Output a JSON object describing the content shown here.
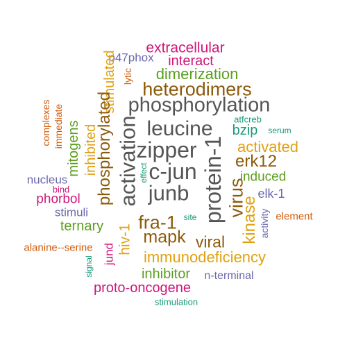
{
  "palette": {
    "gray": "#555555",
    "brown": "#8c5a0b",
    "gold": "#e0a010",
    "green": "#5a9e1e",
    "magenta": "#d0167a",
    "purple": "#6a68ae",
    "orange": "#d25a0a",
    "teal": "#1a9a7a"
  },
  "words": [
    {
      "text": "extracellular",
      "color": "magenta",
      "vertical": false
    },
    {
      "text": "p47phox",
      "color": "purple",
      "vertical": false
    },
    {
      "text": "interact",
      "color": "magenta",
      "vertical": false
    },
    {
      "text": "dimerization",
      "color": "green",
      "vertical": false
    },
    {
      "text": "lytic",
      "color": "orange",
      "vertical": true
    },
    {
      "text": "stimulated",
      "color": "gold",
      "vertical": true
    },
    {
      "text": "heterodimers",
      "color": "brown",
      "vertical": false
    },
    {
      "text": "complexes",
      "color": "orange",
      "vertical": true
    },
    {
      "text": "immediate",
      "color": "orange",
      "vertical": true
    },
    {
      "text": "phosphorylation",
      "color": "gray",
      "vertical": false
    },
    {
      "text": "phosphorylated",
      "color": "brown",
      "vertical": true
    },
    {
      "text": "inhibited",
      "color": "gold",
      "vertical": true
    },
    {
      "text": "mitogens",
      "color": "green",
      "vertical": true
    },
    {
      "text": "atfcreb",
      "color": "teal",
      "vertical": false
    },
    {
      "text": "leucine",
      "color": "gray",
      "vertical": false
    },
    {
      "text": "bzip",
      "color": "teal",
      "vertical": false
    },
    {
      "text": "serum",
      "color": "teal",
      "vertical": false
    },
    {
      "text": "activation",
      "color": "gray",
      "vertical": true
    },
    {
      "text": "zipper",
      "color": "gray",
      "vertical": false
    },
    {
      "text": "activated",
      "color": "gold",
      "vertical": false
    },
    {
      "text": "effect",
      "color": "teal",
      "vertical": true
    },
    {
      "text": "protein-1",
      "color": "gray",
      "vertical": true
    },
    {
      "text": "erk12",
      "color": "brown",
      "vertical": false
    },
    {
      "text": "c-jun",
      "color": "gray",
      "vertical": false
    },
    {
      "text": "nucleus",
      "color": "purple",
      "vertical": false
    },
    {
      "text": "induced",
      "color": "green",
      "vertical": false
    },
    {
      "text": "bind",
      "color": "magenta",
      "vertical": false
    },
    {
      "text": "junb",
      "color": "gray",
      "vertical": false
    },
    {
      "text": "virus",
      "color": "brown",
      "vertical": true
    },
    {
      "text": "elk-1",
      "color": "purple",
      "vertical": false
    },
    {
      "text": "phorbol",
      "color": "magenta",
      "vertical": false
    },
    {
      "text": "stimuli",
      "color": "purple",
      "vertical": false
    },
    {
      "text": "site",
      "color": "teal",
      "vertical": false
    },
    {
      "text": "fra-1",
      "color": "brown",
      "vertical": false
    },
    {
      "text": "activity",
      "color": "purple",
      "vertical": true
    },
    {
      "text": "kinase",
      "color": "gold",
      "vertical": true
    },
    {
      "text": "element",
      "color": "orange",
      "vertical": false
    },
    {
      "text": "ternary",
      "color": "green",
      "vertical": false
    },
    {
      "text": "hiv-1",
      "color": "gold",
      "vertical": true
    },
    {
      "text": "mapk",
      "color": "brown",
      "vertical": false
    },
    {
      "text": "viral",
      "color": "brown",
      "vertical": false
    },
    {
      "text": "alanine--serine",
      "color": "orange",
      "vertical": false
    },
    {
      "text": "jund",
      "color": "magenta",
      "vertical": true
    },
    {
      "text": "immunodeficiency",
      "color": "gold",
      "vertical": false
    },
    {
      "text": "signal",
      "color": "teal",
      "vertical": true
    },
    {
      "text": "inhibitor",
      "color": "green",
      "vertical": false
    },
    {
      "text": "n-terminal",
      "color": "purple",
      "vertical": false
    },
    {
      "text": "proto-oncogene",
      "color": "magenta",
      "vertical": false
    },
    {
      "text": "stimulation",
      "color": "teal",
      "vertical": false
    }
  ]
}
